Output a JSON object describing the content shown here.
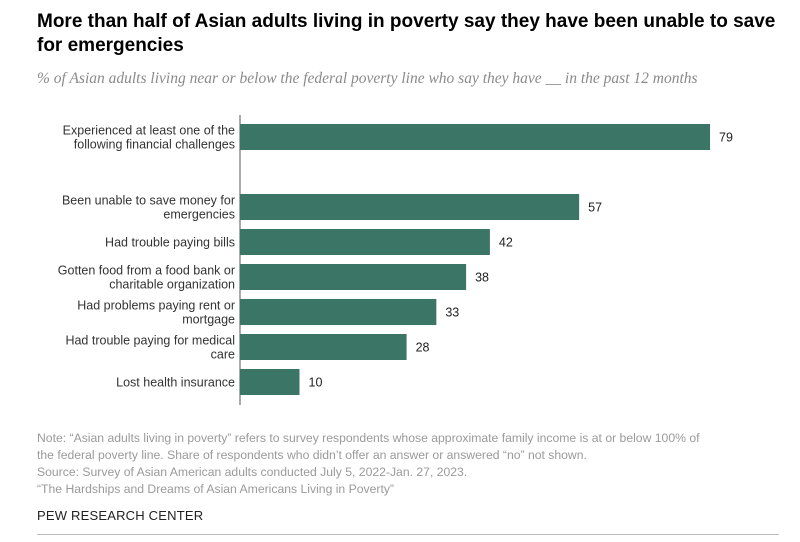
{
  "title": "More than half of Asian adults living in poverty say they have been unable to save for emergencies",
  "subtitle": "% of Asian adults living near or below the federal poverty line who say they have __ in the past 12 months",
  "notes": {
    "note_line1": "Note: “Asian adults living in poverty” refers to survey respondents whose approximate family income is at or below 100% of",
    "note_line2": "the federal poverty line. Share of respondents who didn’t offer an answer or answered “no” not shown.",
    "source": "Source: Survey of Asian American adults conducted July 5, 2022-Jan. 27, 2023.",
    "report": "“The Hardships and Dreams of Asian Americans Living in Poverty”"
  },
  "brand": "PEW RESEARCH CENTER",
  "colors": {
    "bar": "#3b7566",
    "axis": "#555555"
  },
  "chart_data": {
    "type": "bar",
    "orientation": "horizontal",
    "categories": [
      [
        "Experienced at least one of the",
        "following financial challenges"
      ],
      [
        "Been unable to save money for",
        "emergencies"
      ],
      [
        "Had trouble paying bills"
      ],
      [
        "Gotten food from a food bank or",
        "charitable organization"
      ],
      [
        "Had problems paying rent or",
        "mortgage"
      ],
      [
        "Had trouble paying for medical",
        "care"
      ],
      [
        "Lost health insurance"
      ]
    ],
    "values": [
      79,
      57,
      42,
      38,
      33,
      28,
      10
    ],
    "xlim": [
      0,
      100
    ],
    "grid": false,
    "legend": "none"
  }
}
